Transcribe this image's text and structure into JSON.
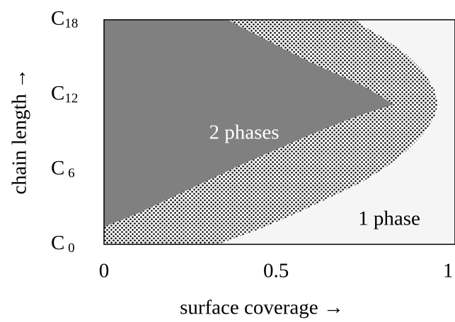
{
  "chart_data": {
    "type": "phase-diagram",
    "xlabel": "surface coverage  →",
    "ylabel": "chain length  →",
    "xlim": [
      0,
      1.02
    ],
    "ylim": [
      0,
      18
    ],
    "xticks": [
      0,
      0.5,
      1
    ],
    "yticks": [
      {
        "value": 0,
        "label": "C",
        "sub": " 0"
      },
      {
        "value": 6,
        "label": "C",
        "sub": " 6"
      },
      {
        "value": 12,
        "label": "C",
        "sub": "12"
      },
      {
        "value": 18,
        "label": "C",
        "sub": "18"
      }
    ],
    "regions": [
      {
        "name": "2 phases",
        "color": "#808080",
        "x": [
          0,
          0.1,
          0.2,
          0.3,
          0.4,
          0.5,
          0.6,
          0.7,
          0.77,
          0.82,
          0.84,
          0.82,
          0.76,
          0.68,
          0.6,
          0.52,
          0.45,
          0.4,
          0.36
        ],
        "y": [
          1.4,
          2.5,
          3.8,
          5.1,
          6.4,
          7.6,
          8.8,
          9.9,
          10.6,
          11.0,
          11.2,
          11.6,
          12.6,
          13.6,
          14.6,
          15.7,
          16.7,
          17.4,
          18
        ]
      },
      {
        "name": "1 phase",
        "color": "#f5f5f5",
        "x": [
          0.33,
          0.45,
          0.56,
          0.66,
          0.75,
          0.82,
          0.88,
          0.93,
          0.96,
          0.97,
          0.96,
          0.93,
          0.88,
          0.82,
          0.76,
          0.73
        ],
        "y": [
          0,
          1.2,
          2.5,
          3.8,
          5.0,
          6.2,
          7.5,
          8.9,
          10.2,
          11.2,
          12.4,
          13.8,
          15.2,
          16.4,
          17.4,
          18
        ]
      }
    ]
  }
}
